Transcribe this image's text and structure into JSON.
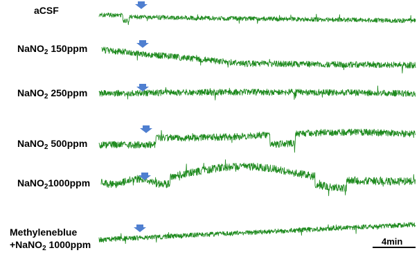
{
  "chart_data": {
    "type": "line",
    "traces": [
      {
        "label_pre": "aCSF",
        "label_sub": "",
        "label_post": "",
        "label_line2": ""
      },
      {
        "label_pre": "NaNO",
        "label_sub": "2",
        "label_post": " 150ppm",
        "label_line2": ""
      },
      {
        "label_pre": "NaNO",
        "label_sub": "2",
        "label_post": " 250ppm",
        "label_line2": ""
      },
      {
        "label_pre": "NaNO",
        "label_sub": "2",
        "label_post": " 500ppm",
        "label_line2": ""
      },
      {
        "label_pre": "NaNO",
        "label_sub": "2",
        "label_post": "1000ppm",
        "label_line2": ""
      },
      {
        "label_pre": "Methyleneblue",
        "label_sub": "",
        "label_post": "",
        "label_line2": "+NaNO2 1000ppm"
      }
    ],
    "scale_bar": {
      "label": "4min"
    },
    "colors": {
      "trace": "#1e8a1e",
      "arrow": "#4f7fd0"
    }
  }
}
